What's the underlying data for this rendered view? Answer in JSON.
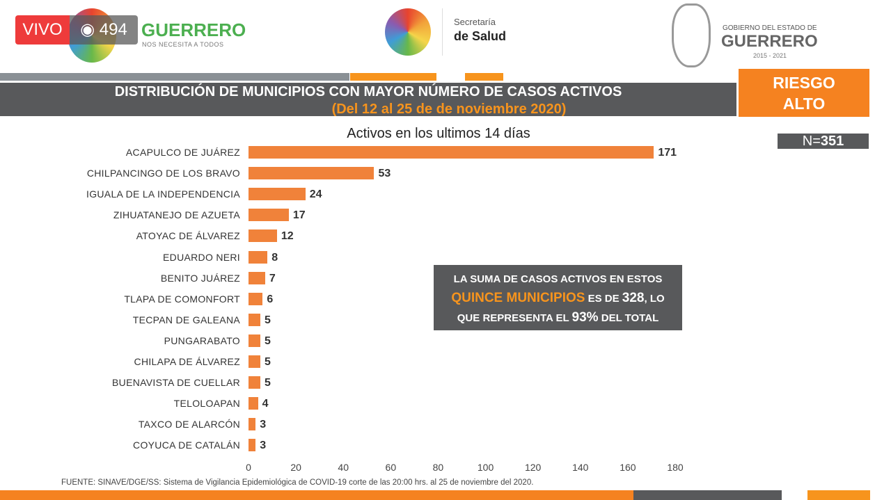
{
  "live": {
    "label": "VIVO",
    "viewers": "494",
    "eye_icon": "eye-icon"
  },
  "header": {
    "brand": "GUERRERO",
    "brand_tagline": "NOS NECESITA A TODOS",
    "secretaria_line1": "Secretaría",
    "secretaria_line2": "de Salud",
    "gob_line1": "GOBIERNO DEL ESTADO DE",
    "gob_line2": "GUERRERO",
    "gob_years": "2015 - 2021"
  },
  "title": {
    "line1": "DISTRIBUCIÓN DE MUNICIPIOS CON MAYOR NÚMERO DE  CASOS ACTIVOS",
    "line2": "(Del 12 al 25 de de noviembre 2020)"
  },
  "risk": {
    "line1": "RIESGO",
    "line2": "ALTO",
    "color": "#f58220"
  },
  "n_badge": {
    "prefix": "N=",
    "value": "351"
  },
  "summary": {
    "p1": "LA SUMA DE CASOS ACTIVOS EN ESTOS",
    "p2_hl": "QUINCE MUNICIPIOS",
    "p2_mid": " ES DE ",
    "p2_num": "328",
    "p2_end": ", LO",
    "p3_a": "QUE REPRESENTA EL ",
    "p3_pct": "93%",
    "p3_b": " DEL TOTAL"
  },
  "source": "FUENTE: SINAVE/DGE/SS: Sistema de Vigilancia Epidemiológica de COVID-19 corte de las 20:00 hrs. al 25 de noviembre del 2020.",
  "chart_data": {
    "type": "bar",
    "orientation": "horizontal",
    "title": "Activos en los ultimos 14 días",
    "categories": [
      "ACAPULCO DE JUÁREZ",
      "CHILPANCINGO DE LOS BRAVO",
      "IGUALA DE LA INDEPENDENCIA",
      "ZIHUATANEJO DE AZUETA",
      "ATOYAC DE ÁLVAREZ",
      "EDUARDO NERI",
      "BENITO JUÁREZ",
      "TLAPA DE COMONFORT",
      "TECPAN DE GALEANA",
      "PUNGARABATO",
      "CHILAPA DE ÁLVAREZ",
      "BUENAVISTA DE CUELLAR",
      "TELOLOAPAN",
      "TAXCO DE ALARCÓN",
      "COYUCA DE CATALÁN"
    ],
    "values": [
      171,
      53,
      24,
      17,
      12,
      8,
      7,
      6,
      5,
      5,
      5,
      5,
      4,
      3,
      3
    ],
    "xlim": [
      0,
      180
    ],
    "xticks": [
      0,
      20,
      40,
      60,
      80,
      100,
      120,
      140,
      160,
      180
    ],
    "bar_color": "#f0823a",
    "grid": false
  }
}
